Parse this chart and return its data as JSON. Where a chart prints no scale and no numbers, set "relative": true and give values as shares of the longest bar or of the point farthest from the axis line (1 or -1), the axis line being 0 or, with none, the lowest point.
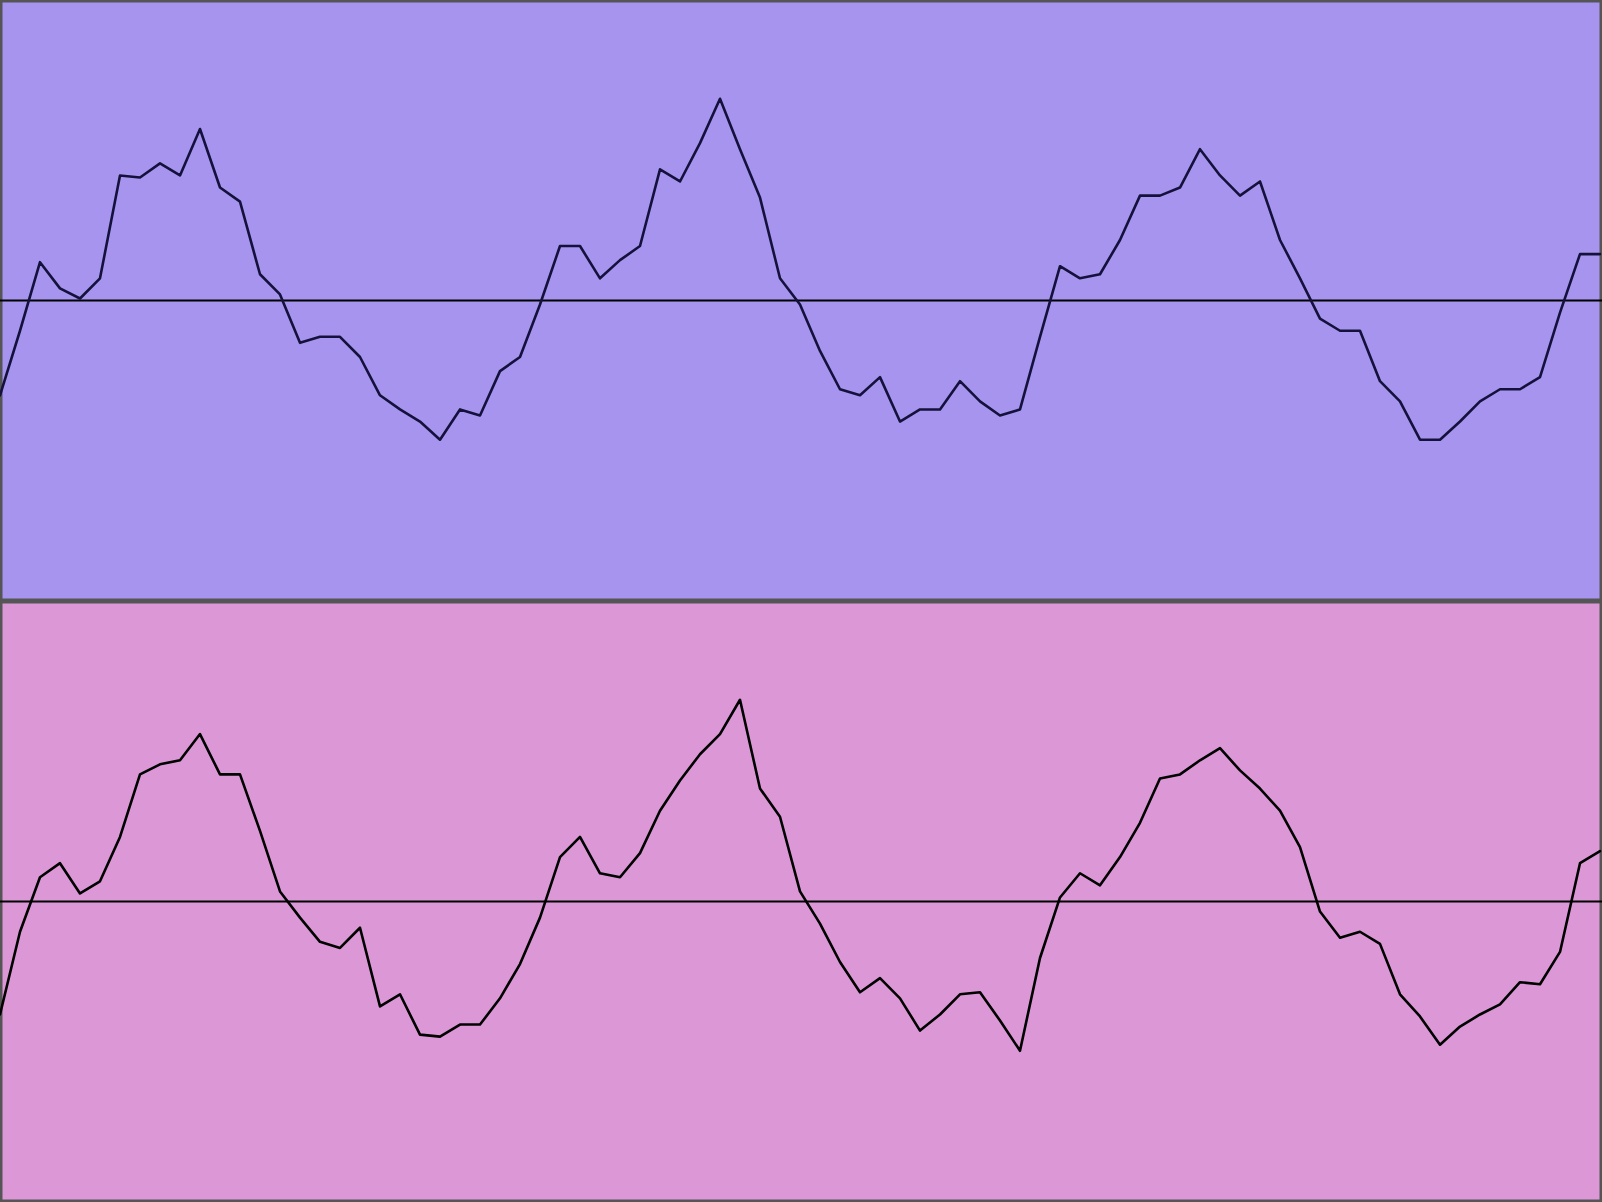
{
  "chart_data": [
    {
      "type": "line",
      "relative": true,
      "categories": [
        null,
        null,
        null,
        null,
        null,
        null,
        null,
        null,
        null,
        null,
        null,
        null,
        null,
        null,
        null,
        null,
        null,
        null,
        null,
        null,
        null,
        null,
        null,
        null,
        null,
        null,
        null,
        null,
        null,
        null,
        null,
        null,
        null,
        null,
        null,
        null,
        null,
        null,
        null,
        null,
        null,
        null,
        null,
        null,
        null,
        null,
        null,
        null,
        null,
        null,
        null,
        null,
        null,
        null,
        null,
        null,
        null,
        null,
        null,
        null,
        null,
        null,
        null,
        null,
        null,
        null,
        null,
        null,
        null,
        null,
        null,
        null,
        null,
        null,
        null,
        null,
        null,
        null,
        null,
        null,
        null
      ],
      "series": [
        {
          "color": "#14123c",
          "values": [
            -0.47,
            -0.15,
            0.19,
            0.06,
            0.01,
            0.11,
            0.62,
            0.61,
            0.68,
            0.62,
            0.85,
            0.56,
            0.49,
            0.13,
            0.03,
            -0.21,
            -0.18,
            -0.18,
            -0.28,
            -0.47,
            -0.54,
            -0.6,
            -0.69,
            -0.54,
            -0.57,
            -0.35,
            -0.28,
            -0.02,
            0.27,
            0.27,
            0.11,
            0.2,
            0.27,
            0.65,
            0.59,
            0.78,
            1,
            0.75,
            0.51,
            0.11,
            -0.02,
            -0.25,
            -0.44,
            -0.47,
            -0.38,
            -0.6,
            -0.54,
            -0.54,
            -0.4,
            -0.5,
            -0.57,
            -0.54,
            -0.18,
            0.17,
            0.11,
            0.13,
            0.3,
            0.52,
            0.52,
            0.56,
            0.75,
            0.62,
            0.52,
            0.59,
            0.3,
            0.11,
            -0.09,
            -0.15,
            -0.15,
            -0.4,
            -0.5,
            -0.69,
            -0.69,
            -0.6,
            -0.5,
            -0.44,
            -0.44,
            -0.38,
            -0.06,
            0.23,
            0.23
          ]
        }
      ]
    },
    {
      "type": "line",
      "relative": true,
      "categories": [
        null,
        null,
        null,
        null,
        null,
        null,
        null,
        null,
        null,
        null,
        null,
        null,
        null,
        null,
        null,
        null,
        null,
        null,
        null,
        null,
        null,
        null,
        null,
        null,
        null,
        null,
        null,
        null,
        null,
        null,
        null,
        null,
        null,
        null,
        null,
        null,
        null,
        null,
        null,
        null,
        null,
        null,
        null,
        null,
        null,
        null,
        null,
        null,
        null,
        null,
        null,
        null,
        null,
        null,
        null,
        null,
        null,
        null,
        null,
        null,
        null,
        null,
        null,
        null,
        null,
        null,
        null,
        null,
        null,
        null,
        null,
        null,
        null,
        null,
        null,
        null,
        null,
        null,
        null,
        null,
        null
      ],
      "series": [
        {
          "color": "#000000",
          "values": [
            -0.56,
            -0.15,
            0.12,
            0.19,
            0.04,
            0.1,
            0.32,
            0.63,
            0.68,
            0.7,
            0.83,
            0.63,
            0.63,
            0.35,
            0.05,
            -0.08,
            -0.2,
            -0.23,
            -0.13,
            -0.52,
            -0.46,
            -0.66,
            -0.67,
            -0.61,
            -0.61,
            -0.48,
            -0.31,
            -0.08,
            0.22,
            0.32,
            0.14,
            0.12,
            0.24,
            0.45,
            0.6,
            0.73,
            0.83,
            1,
            0.56,
            0.42,
            0.05,
            -0.11,
            -0.3,
            -0.45,
            -0.38,
            -0.48,
            -0.64,
            -0.56,
            -0.46,
            -0.45,
            -0.59,
            -0.74,
            -0.28,
            0.02,
            0.14,
            0.08,
            0.22,
            0.39,
            0.61,
            0.63,
            0.7,
            0.76,
            0.65,
            0.56,
            0.45,
            0.27,
            -0.05,
            -0.18,
            -0.15,
            -0.21,
            -0.46,
            -0.57,
            -0.71,
            -0.62,
            -0.56,
            -0.51,
            -0.4,
            -0.41,
            -0.25,
            0.19,
            0.25
          ]
        }
      ]
    }
  ]
}
